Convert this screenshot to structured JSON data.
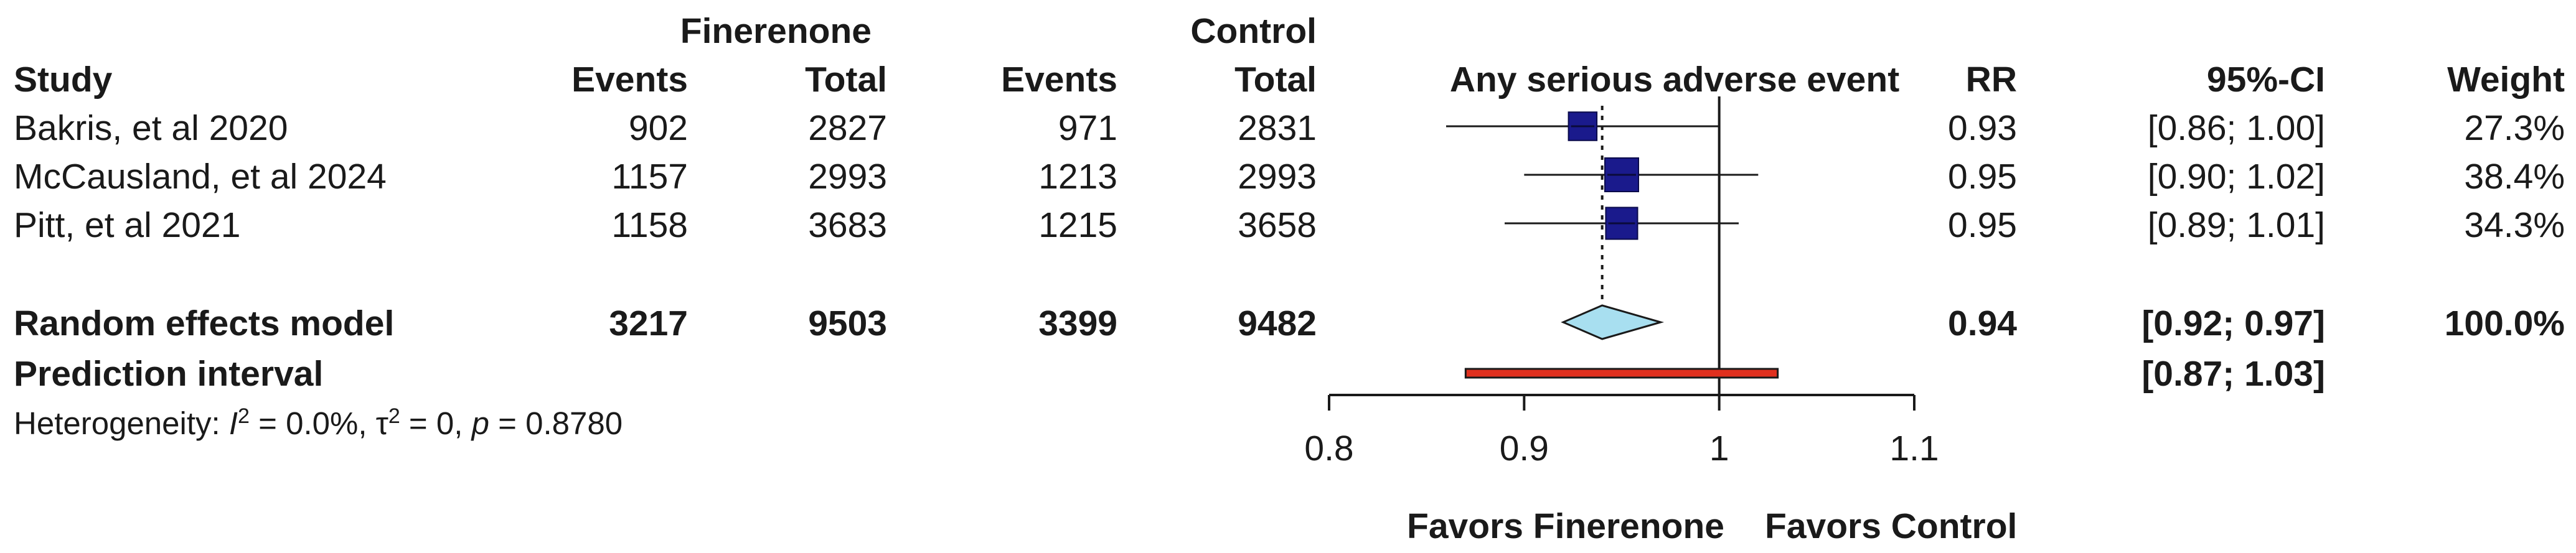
{
  "header": {
    "group1": "Finerenone",
    "group2": "Control",
    "study": "Study",
    "events1": "Events",
    "total1": "Total",
    "events2": "Events",
    "total2": "Total",
    "outcome": "Any serious adverse event",
    "rr": "RR",
    "ci": "95%-CI",
    "weight": "Weight"
  },
  "studies": [
    {
      "name": "Bakris, et al 2020",
      "events1": "902",
      "total1": "2827",
      "events2": "971",
      "total2": "2831",
      "rr": "0.93",
      "ci": "[0.86; 1.00]",
      "weight": "27.3%"
    },
    {
      "name": "McCausland, et al 2024",
      "events1": "1157",
      "total1": "2993",
      "events2": "1213",
      "total2": "2993",
      "rr": "0.95",
      "ci": "[0.90; 1.02]",
      "weight": "38.4%"
    },
    {
      "name": "Pitt, et al 2021",
      "events1": "1158",
      "total1": "3683",
      "events2": "1215",
      "total2": "3658",
      "rr": "0.95",
      "ci": "[0.89; 1.01]",
      "weight": "34.3%"
    }
  ],
  "pooled": {
    "label": "Random effects model",
    "events1": "3217",
    "total1": "9503",
    "events2": "3399",
    "total2": "9482",
    "rr": "0.94",
    "ci": "[0.92; 0.97]",
    "weight": "100.0%"
  },
  "prediction": {
    "label": "Prediction interval",
    "ci": "[0.87; 1.03]"
  },
  "heterogeneity": {
    "prefix": "Heterogeneity: ",
    "i2_sym": "I",
    "i2_exp": "2",
    "i2_val": " = 0.0%, ",
    "tau_sym": "τ",
    "tau_exp": "2",
    "tau_val": " = 0, ",
    "p_sym": "p",
    "p_val": " = 0.8780"
  },
  "footer": {
    "favors_left": "Favors Finerenone",
    "favors_right": "Favors Control"
  },
  "colors": {
    "box": "#1a1a8c",
    "diamond": "#a8dff0",
    "prediction_bar": "#e0301e",
    "line": "#1a1a1a"
  },
  "chart_data": {
    "type": "forest",
    "title": "Any serious adverse event",
    "xlabel": "",
    "ylabel": "",
    "xlim": [
      0.8,
      1.1
    ],
    "x_ticks": [
      0.8,
      0.9,
      1,
      1.1
    ],
    "x_tick_labels": [
      "0.8",
      "0.9",
      "1",
      "1.1"
    ],
    "null_line": 1,
    "pooled_reference": 0.94,
    "studies": [
      {
        "name": "Bakris, et al 2020",
        "rr": 0.93,
        "lower": 0.86,
        "upper": 1.0,
        "weight": 27.3
      },
      {
        "name": "McCausland, et al 2024",
        "rr": 0.95,
        "lower": 0.9,
        "upper": 1.02,
        "weight": 38.4
      },
      {
        "name": "Pitt, et al 2021",
        "rr": 0.95,
        "lower": 0.89,
        "upper": 1.01,
        "weight": 34.3
      }
    ],
    "pooled": {
      "name": "Random effects model",
      "rr": 0.94,
      "lower": 0.92,
      "upper": 0.97
    },
    "prediction_interval": {
      "lower": 0.87,
      "upper": 1.03
    },
    "grid": false
  }
}
